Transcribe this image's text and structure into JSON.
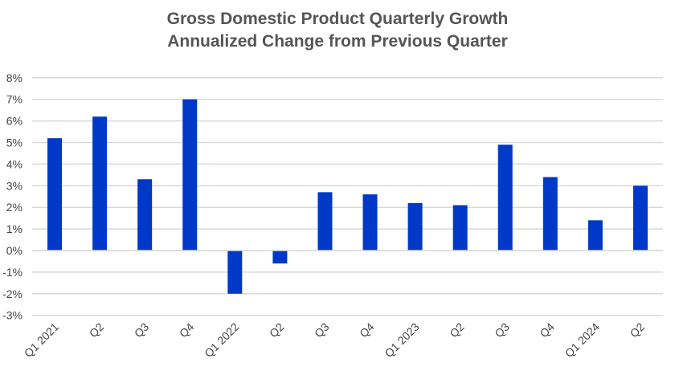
{
  "chart_data": {
    "type": "bar",
    "title": "Gross Domestic Product Quarterly Growth",
    "subtitle": "Annualized Change from Previous Quarter",
    "xlabel": "",
    "ylabel": "",
    "categories": [
      "Q1 2021",
      "Q2",
      "Q3",
      "Q4",
      "Q1 2022",
      "Q2",
      "Q3",
      "Q4",
      "Q1 2023",
      "Q2",
      "Q3",
      "Q4",
      "Q1 2024",
      "Q2"
    ],
    "values": [
      5.2,
      6.2,
      3.3,
      7.0,
      -2.0,
      -0.6,
      2.7,
      2.6,
      2.2,
      2.1,
      4.9,
      3.4,
      1.4,
      3.0
    ],
    "ylim": [
      -3,
      8
    ],
    "yticks": [
      "-3%",
      "-2%",
      "-1%",
      "0%",
      "1%",
      "2%",
      "3%",
      "4%",
      "5%",
      "6%",
      "7%",
      "8%"
    ],
    "grid": true,
    "legend": "none",
    "bar_color": "#0038C8",
    "grid_color": "#D9D9D9"
  }
}
